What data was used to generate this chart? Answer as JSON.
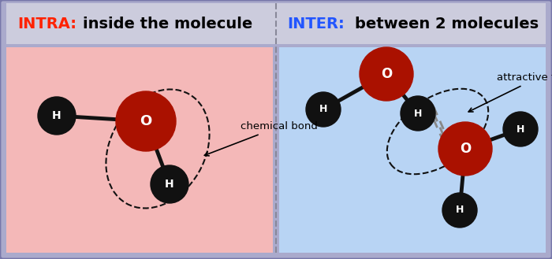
{
  "fig_width": 7.0,
  "fig_height": 3.29,
  "dpi": 100,
  "outer_bg": "#aaaacc",
  "left_bg": "#f4b8b8",
  "right_bg": "#b8d4f4",
  "header_bg": "#ccccdd",
  "divider_color": "#888899",
  "intra_label": "INTRA:",
  "intra_label_color": "#ff2200",
  "intra_text": "inside the molecule",
  "inter_label": "INTER:",
  "inter_label_color": "#2255ff",
  "inter_text": "between 2 molecules",
  "O_color": "#aa1100",
  "H_color": "#111111",
  "bond_color": "#111111",
  "dashed_color": "#111111",
  "attractive_dashed_color": "#888888",
  "chemical_bond_label": "chemical bond",
  "attractive_force_label": "attractive force",
  "text_fontsize": 9.5,
  "header_fontsize": 14
}
